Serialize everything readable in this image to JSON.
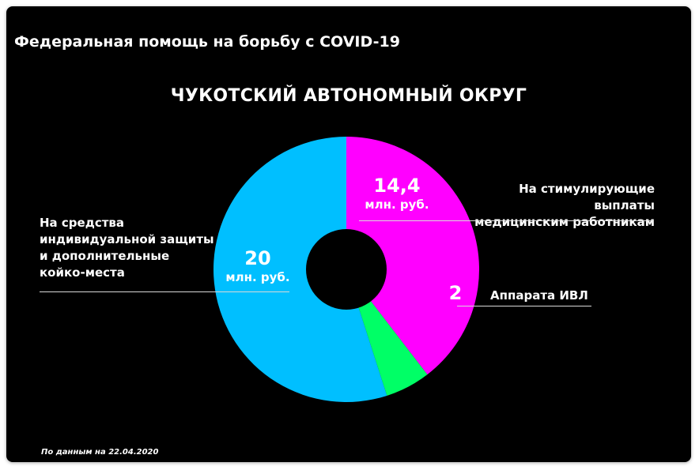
{
  "header": {
    "title": "Федеральная помощь на борьбу с COVID-19"
  },
  "region_title": "ЧУКОТСКИЙ АВТОНОМНЫЙ ОКРУГ",
  "source_note": "По данным на 22.04.2020",
  "chart_data": {
    "type": "pie",
    "donut": true,
    "slices": [
      {
        "value_label": "14,4",
        "value": 14.4,
        "unit": "млн. руб.",
        "color": "#ff00ff",
        "label_lines": [
          "На стимулирующие выплаты",
          "медицинским работникам"
        ]
      },
      {
        "value_label": "2",
        "value": 2,
        "unit": "",
        "color": "#00ff66",
        "label_lines": [
          "Аппарата ИВЛ"
        ]
      },
      {
        "value_label": "20",
        "value": 20,
        "unit": "млн. руб.",
        "color": "#00bfff",
        "label_lines": [
          "На средства",
          "индивидуальной защиты",
          "и дополнительные",
          "койко-места"
        ]
      }
    ],
    "legend": "none"
  }
}
